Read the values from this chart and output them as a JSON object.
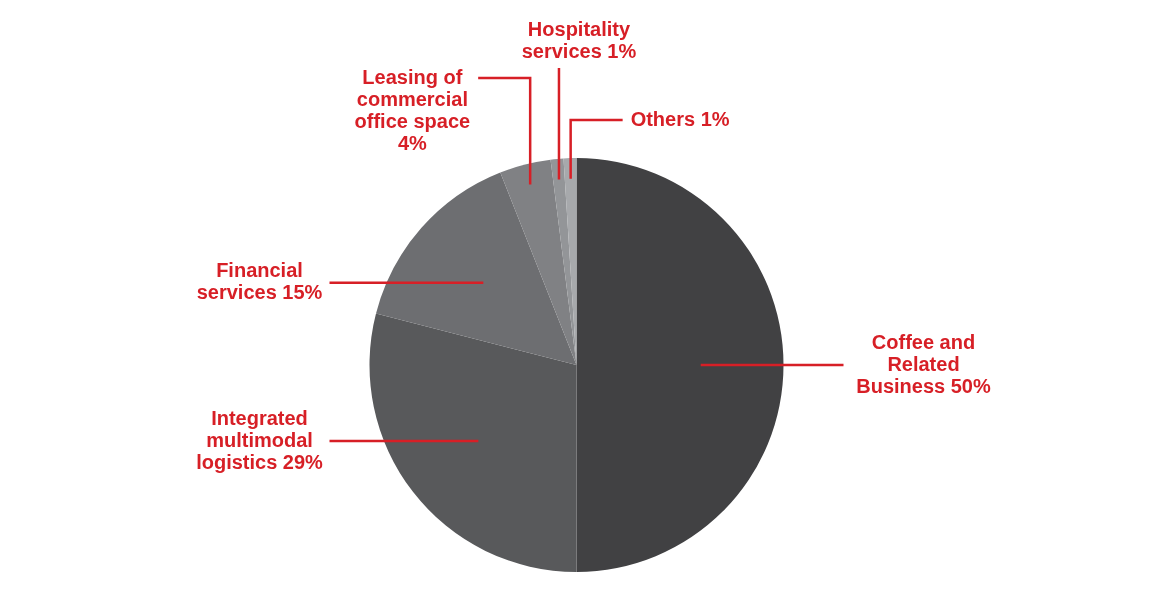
{
  "chart_data": {
    "type": "pie",
    "categories": [
      "Coffee and Related Business",
      "Integrated multimodal logistics",
      "Financial services",
      "Leasing of commercial office space",
      "Hospitality services",
      "Others"
    ],
    "values": [
      50,
      29,
      15,
      4,
      1,
      1
    ],
    "value_labels": [
      "50%",
      "29%",
      "15%",
      "4%",
      "1%",
      "1%"
    ],
    "colors": [
      "#414143",
      "#58595b",
      "#6d6e71",
      "#808184",
      "#939598",
      "#a7a9ac"
    ],
    "legend": false
  }
}
